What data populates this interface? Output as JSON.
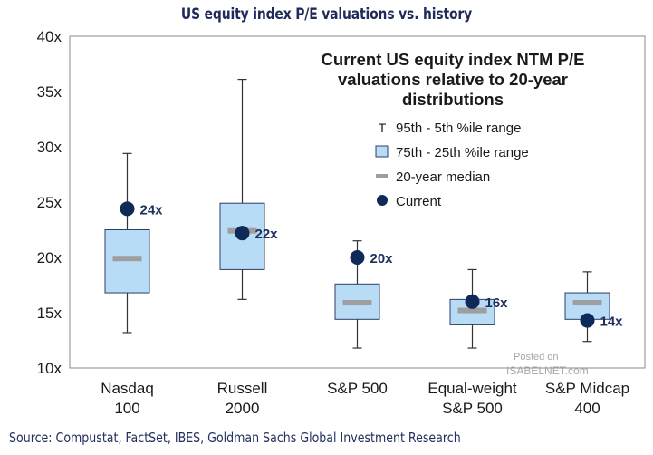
{
  "title": "US equity index P/E valuations vs. history",
  "source": "Source: Compustat, FactSet, IBES, Goldman Sachs Global Investment Research",
  "watermark": {
    "line1": "Posted on",
    "line2": "ISABELNET.com"
  },
  "colors": {
    "box_fill": "#b8dcf5",
    "box_stroke": "#2b3e66",
    "median": "#9e9e9e",
    "current": "#0d2a58",
    "whisker": "#333333",
    "plot_border": "#888888",
    "label": "#1f2f5c"
  },
  "chart_data": {
    "type": "box",
    "title": "US equity index P/E valuations vs. history",
    "legend_title": "Current US equity index NTM P/E valuations relative to 20-year distributions",
    "legend_title_lines": [
      "Current US equity index NTM P/E",
      "valuations relative to 20-year",
      "distributions"
    ],
    "legend": [
      {
        "marker": "T",
        "label": "95th - 5th %ile range"
      },
      {
        "marker": "box",
        "label": "75th - 25th %ile range"
      },
      {
        "marker": "dash",
        "label": "20-year median"
      },
      {
        "marker": "dot",
        "label": "Current"
      }
    ],
    "y_ticks": [
      "10x",
      "15x",
      "20x",
      "25x",
      "30x",
      "35x",
      "40x"
    ],
    "ylim": [
      10,
      40
    ],
    "categories": [
      {
        "lines": [
          "Nasdaq",
          "100"
        ],
        "p5": 13.2,
        "p25": 16.8,
        "median": 19.9,
        "p75": 22.5,
        "p95": 29.4,
        "current": 24.4,
        "current_label": "24x"
      },
      {
        "lines": [
          "Russell",
          "2000"
        ],
        "p5": 16.2,
        "p25": 18.9,
        "median": 22.4,
        "p75": 24.9,
        "p95": 36.1,
        "current": 22.2,
        "current_label": "22x"
      },
      {
        "lines": [
          "S&P 500",
          ""
        ],
        "p5": 11.8,
        "p25": 14.4,
        "median": 15.9,
        "p75": 17.6,
        "p95": 21.5,
        "current": 20.0,
        "current_label": "20x"
      },
      {
        "lines": [
          "Equal-weight",
          "S&P 500"
        ],
        "p5": 11.8,
        "p25": 13.9,
        "median": 15.2,
        "p75": 16.2,
        "p95": 18.9,
        "current": 16.0,
        "current_label": "16x"
      },
      {
        "lines": [
          "S&P Midcap",
          "400"
        ],
        "p5": 12.4,
        "p25": 14.4,
        "median": 15.9,
        "p75": 16.8,
        "p95": 18.7,
        "current": 14.3,
        "current_label": "14x"
      }
    ]
  }
}
